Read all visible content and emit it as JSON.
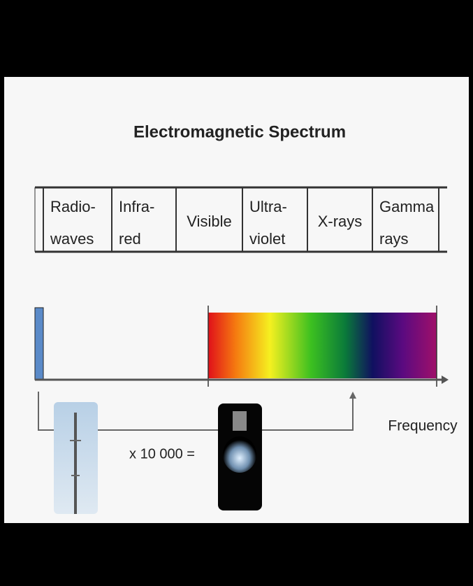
{
  "title": "Electromagnetic Spectrum",
  "bands": [
    {
      "lines": [
        "Radio-",
        "waves"
      ]
    },
    {
      "lines": [
        "Infra-",
        "red"
      ]
    },
    {
      "lines": [
        "Visible"
      ]
    },
    {
      "lines": [
        "Ultra-",
        "violet"
      ]
    },
    {
      "lines": [
        "X-rays"
      ]
    },
    {
      "lines": [
        "Gamma",
        "rays"
      ]
    }
  ],
  "axis_label": "Frequency",
  "comparison": "x 10 000 ="
}
